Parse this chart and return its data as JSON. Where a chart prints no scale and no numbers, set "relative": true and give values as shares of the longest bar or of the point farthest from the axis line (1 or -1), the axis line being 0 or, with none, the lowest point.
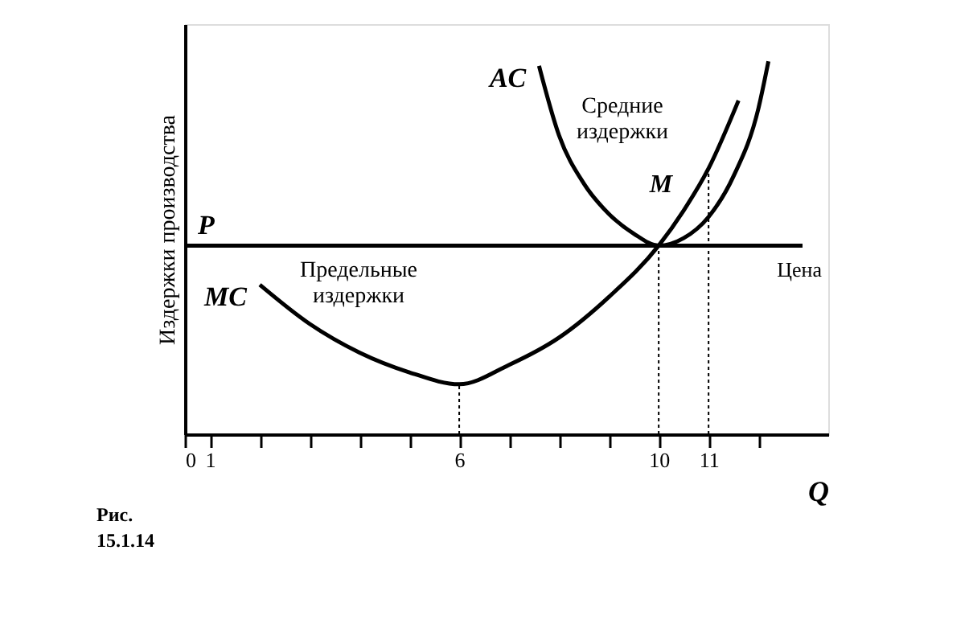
{
  "chart_data": {
    "type": "line",
    "relative": true,
    "xlabel": "Q",
    "ylabel": "Издержки производства",
    "xlim": [
      0.5,
      13.4
    ],
    "xticks": [
      {
        "value": 0.5,
        "label": "0"
      },
      1,
      {
        "value": 2,
        "label": null
      },
      {
        "value": 3,
        "label": null
      },
      {
        "value": 4,
        "label": null
      },
      {
        "value": 5,
        "label": null
      },
      6,
      {
        "value": 7,
        "label": null
      },
      {
        "value": 8,
        "label": null
      },
      {
        "value": 9,
        "label": null
      },
      10,
      11,
      {
        "value": 12,
        "label": null
      }
    ],
    "series": [
      {
        "name": "MC",
        "color": "#000000",
        "x": [
          2,
          3,
          4,
          5,
          6,
          7,
          8,
          9,
          10,
          10.5,
          11,
          11.6
        ],
        "values": [
          0.401,
          0.296,
          0.219,
          0.166,
          0.134,
          0.186,
          0.259,
          0.368,
          0.506,
          0.6,
          0.713,
          0.895
        ]
      },
      {
        "name": "AC",
        "color": "#000000",
        "x": [
          7.6,
          8,
          8.5,
          9,
          9.5,
          10,
          10.5,
          11,
          11.5,
          12,
          12.2
        ],
        "values": [
          0.988,
          0.802,
          0.672,
          0.591,
          0.538,
          0.506,
          0.526,
          0.583,
          0.692,
          0.874,
          1.0
        ]
      }
    ],
    "ref_lines": [
      {
        "axis": "y",
        "value": 0.506,
        "label": "P",
        "color": "#000000",
        "line_style": "solid"
      },
      {
        "axis": "x",
        "value": 6,
        "color": "#000000",
        "line_style": "dotted"
      },
      {
        "axis": "x",
        "value": 10,
        "color": "#000000",
        "line_style": "dotted"
      },
      {
        "axis": "x",
        "value": 11,
        "color": "#000000",
        "line_style": "dotted"
      }
    ],
    "annotations": [
      "Средние издержки",
      "Предельные издержки",
      "M",
      "Цена",
      "Рис. 15.1.14"
    ],
    "grid": false,
    "marker": "none",
    "line_style": "solid",
    "tick_labels": "x"
  }
}
